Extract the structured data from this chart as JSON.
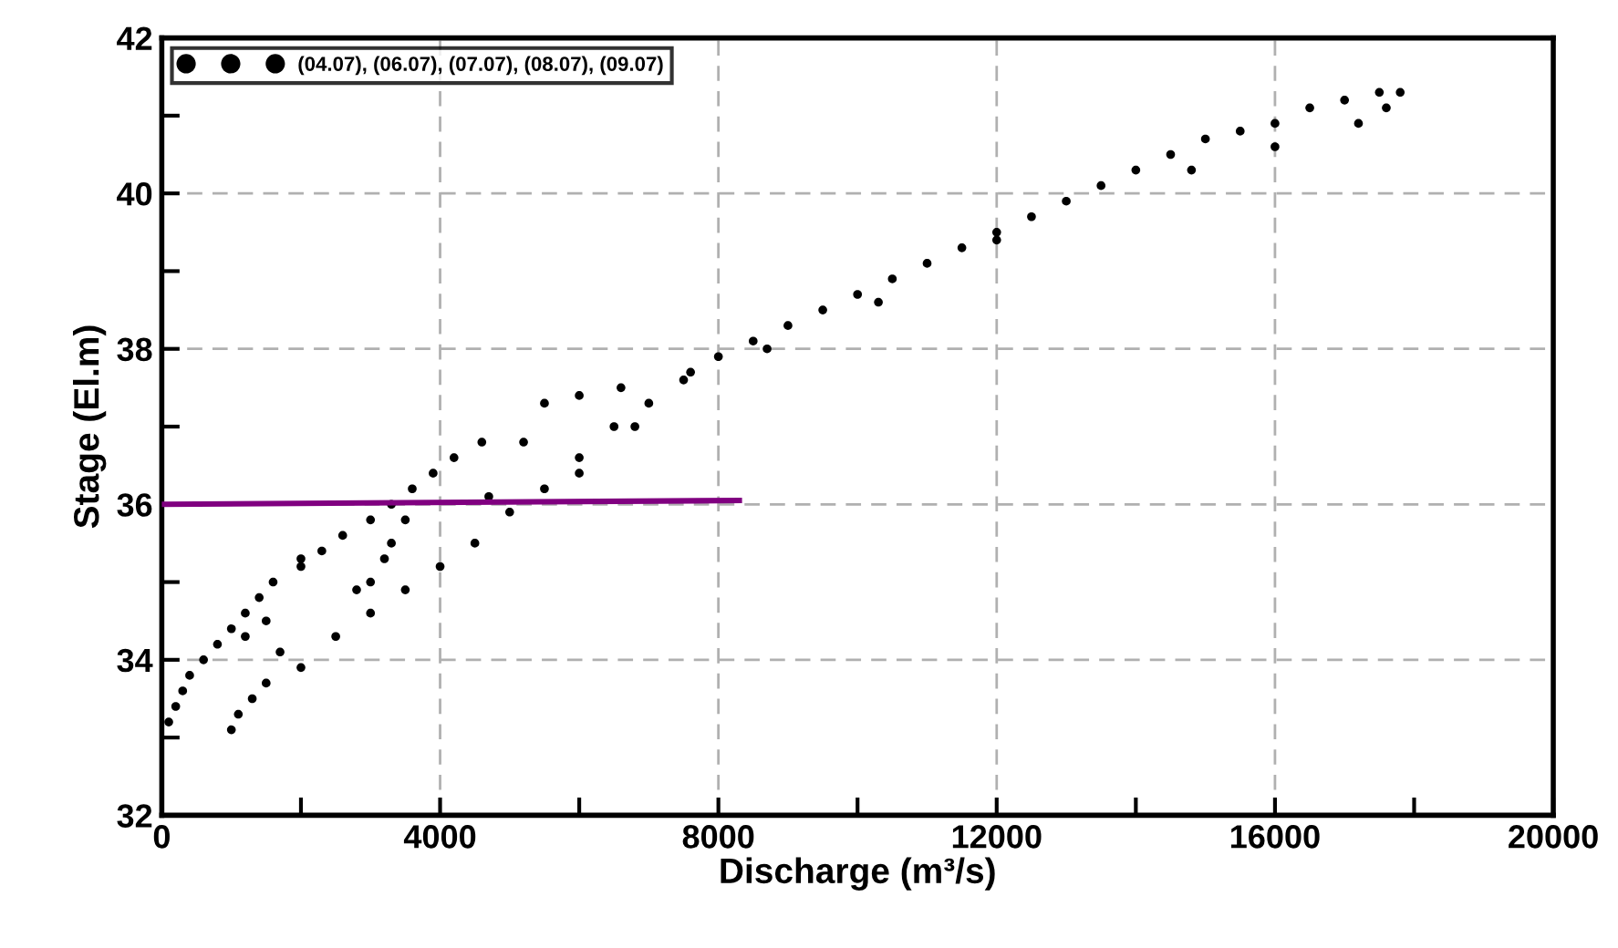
{
  "chart_data": {
    "type": "scatter",
    "xlabel": "Discharge (m³/s)",
    "ylabel": "Stage (El.m)",
    "xlim": [
      0,
      20000
    ],
    "ylim": [
      32,
      42
    ],
    "xticks": [
      0,
      {
        "value": 2000,
        "label": null
      },
      4000,
      {
        "value": 6000,
        "label": null
      },
      8000,
      {
        "value": 10000,
        "label": null
      },
      12000,
      {
        "value": 14000,
        "label": null
      },
      16000,
      {
        "value": 18000,
        "label": null
      },
      20000
    ],
    "yticks": [
      32,
      {
        "value": 33,
        "label": null
      },
      34,
      {
        "value": 35,
        "label": null
      },
      36,
      {
        "value": 37,
        "label": null
      },
      38,
      {
        "value": 39,
        "label": null
      },
      40,
      {
        "value": 41,
        "label": null
      },
      42
    ],
    "grid": true,
    "legend": "top left",
    "marker": "circle",
    "series": [
      {
        "name": "(04.07), (06.07), (07.07), (08.07), (09.07)",
        "color": "#000000",
        "x": [
          100,
          200,
          300,
          400,
          600,
          800,
          1000,
          1200,
          1400,
          1600,
          2000,
          2300,
          2600,
          3000,
          3300,
          3600,
          3900,
          4200,
          4600,
          1500,
          1700,
          2000,
          1200,
          1000,
          1100,
          1300,
          1500,
          2000,
          2500,
          3000,
          3500,
          4000,
          4500,
          5000,
          5500,
          6000,
          6500,
          7000,
          7500,
          8000,
          8500,
          9000,
          9500,
          10000,
          10500,
          11000,
          11500,
          12000,
          12500,
          13000,
          13500,
          14000,
          14500,
          15000,
          15500,
          16000,
          16500,
          17000,
          17500,
          17800,
          3000,
          3300,
          3500,
          3200,
          2800,
          4700,
          5200,
          5500,
          6000,
          6600,
          6800,
          6000,
          12000,
          14800,
          16000,
          17200,
          17600,
          10300,
          8700,
          7600
        ],
        "values": [
          33.2,
          33.4,
          33.6,
          33.8,
          34.0,
          34.2,
          34.4,
          34.6,
          34.8,
          35.0,
          35.2,
          35.4,
          35.6,
          35.8,
          36.0,
          36.2,
          36.4,
          36.6,
          36.8,
          34.5,
          34.1,
          35.3,
          34.3,
          33.1,
          33.3,
          33.5,
          33.7,
          33.9,
          34.3,
          34.6,
          34.9,
          35.2,
          35.5,
          35.9,
          36.2,
          36.6,
          37.0,
          37.3,
          37.6,
          37.9,
          38.1,
          38.3,
          38.5,
          38.7,
          38.9,
          39.1,
          39.3,
          39.5,
          39.7,
          39.9,
          40.1,
          40.3,
          40.5,
          40.7,
          40.8,
          40.9,
          41.1,
          41.2,
          41.3,
          41.3,
          35.0,
          35.5,
          35.8,
          35.3,
          34.9,
          36.1,
          36.8,
          37.3,
          37.4,
          37.5,
          37.0,
          36.4,
          39.4,
          40.3,
          40.6,
          40.9,
          41.1,
          38.6,
          38.0,
          37.7
        ]
      },
      {
        "type": "line",
        "color": "#800080",
        "x": [
          0,
          8300
        ],
        "values": [
          36.0,
          36.05
        ],
        "marker": "none",
        "line_style": "solid"
      }
    ]
  }
}
